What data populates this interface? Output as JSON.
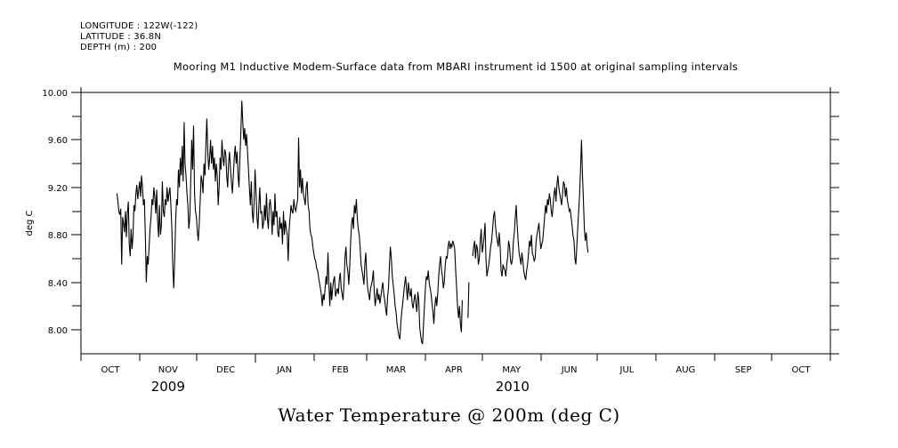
{
  "header": {
    "longitude": "LONGITUDE : 122W(-122)",
    "latitude": "LATITUDE : 36.8N",
    "depth": "DEPTH (m) : 200"
  },
  "chart_data": {
    "type": "line",
    "title": "Water Temperature @ 200m (deg C)",
    "subtitle": "Mooring M1 Inductive Modem-Surface data from MBARI instrument id 1500 at original sampling intervals",
    "xlabel": "",
    "ylabel": "deg C",
    "ylim": [
      7.8,
      10.0
    ],
    "yticks": [
      8.0,
      8.4,
      8.8,
      9.2,
      9.6,
      10.0
    ],
    "ytick_labels": [
      "8.00",
      "8.40",
      "8.80",
      "9.20",
      "9.60",
      "10.00"
    ],
    "yminor_ticks": [
      7.8,
      8.2,
      8.6,
      9.0,
      9.4,
      9.8
    ],
    "x_unit": "days since 2009-10-01",
    "xlim": [
      0,
      396
    ],
    "month_ticks": [
      0,
      31,
      61,
      92,
      123,
      151,
      182,
      212,
      243,
      273,
      304,
      335,
      365,
      396
    ],
    "month_labels": [
      "OCT",
      "NOV",
      "DEC",
      "JAN",
      "FEB",
      "MAR",
      "APR",
      "MAY",
      "JUN",
      "JUL",
      "AUG",
      "SEP",
      "OCT"
    ],
    "year_labels": [
      {
        "label": "2009",
        "day": 46
      },
      {
        "label": "2010",
        "day": 228
      }
    ],
    "grid": false,
    "legend": "none",
    "series": [
      {
        "name": "Water Temperature @ 200m",
        "color": "#000000",
        "start_day": 19,
        "step_days": 0.5,
        "values": [
          9.15,
          9.08,
          9.0,
          8.97,
          9.02,
          8.55,
          8.95,
          8.9,
          8.82,
          9.0,
          8.78,
          8.98,
          9.08,
          8.72,
          8.62,
          8.85,
          8.68,
          8.8,
          9.05,
          9.0,
          9.15,
          9.22,
          9.1,
          9.18,
          9.25,
          9.12,
          9.3,
          9.2,
          9.05,
          9.1,
          8.8,
          8.4,
          8.62,
          8.55,
          8.7,
          8.85,
          8.95,
          9.1,
          9.05,
          9.2,
          9.12,
          8.98,
          9.18,
          8.92,
          8.78,
          9.05,
          8.8,
          8.88,
          9.25,
          9.0,
          8.95,
          9.1,
          9.05,
          9.2,
          9.08,
          9.15,
          9.2,
          9.05,
          8.85,
          8.55,
          8.35,
          8.6,
          8.9,
          9.1,
          9.05,
          9.35,
          9.2,
          9.45,
          9.3,
          9.55,
          9.25,
          9.75,
          9.4,
          9.3,
          9.15,
          9.05,
          8.85,
          8.95,
          9.25,
          9.6,
          9.35,
          9.72,
          9.15,
          9.0,
          8.95,
          8.82,
          8.75,
          8.9,
          9.1,
          9.3,
          9.25,
          9.15,
          9.4,
          9.3,
          9.55,
          9.78,
          9.5,
          9.35,
          9.45,
          9.6,
          9.4,
          9.55,
          9.35,
          9.45,
          9.25,
          9.4,
          9.3,
          9.05,
          9.2,
          9.45,
          9.35,
          9.6,
          9.45,
          9.38,
          9.52,
          9.48,
          9.3,
          9.2,
          9.4,
          9.5,
          9.35,
          9.25,
          9.15,
          9.3,
          9.45,
          9.55,
          9.4,
          9.5,
          9.3,
          9.2,
          9.45,
          9.68,
          9.93,
          9.75,
          9.6,
          9.7,
          9.55,
          9.65,
          9.5,
          9.35,
          9.2,
          9.05,
          9.25,
          9.0,
          8.9,
          9.1,
          9.35,
          9.15,
          8.95,
          8.85,
          9.05,
          9.2,
          8.98,
          9.0,
          8.85,
          8.9,
          9.05,
          8.92,
          9.15,
          8.95,
          8.85,
          9.05,
          9.1,
          9.0,
          8.8,
          9.0,
          8.88,
          9.15,
          8.95,
          9.0,
          8.82,
          8.78,
          8.95,
          8.85,
          8.9,
          8.72,
          9.0,
          8.8,
          8.92,
          8.85,
          8.8,
          8.58,
          8.85,
          8.95,
          9.05,
          9.0,
          8.98,
          9.1,
          9.02,
          9.0,
          9.05,
          9.1,
          9.62,
          9.2,
          9.35,
          9.15,
          9.28,
          9.15,
          9.1,
          9.05,
          9.2,
          9.25,
          9.05,
          9.0,
          8.85,
          8.8,
          8.78,
          8.7,
          8.65,
          8.6,
          8.58,
          8.52,
          8.5,
          8.45,
          8.4,
          8.35,
          8.3,
          8.2,
          8.3,
          8.25,
          8.35,
          8.45,
          8.38,
          8.65,
          8.4,
          8.2,
          8.4,
          8.25,
          8.35,
          8.42,
          8.45,
          8.28,
          8.32,
          8.35,
          8.3,
          8.42,
          8.48,
          8.35,
          8.3,
          8.25,
          8.4,
          8.6,
          8.7,
          8.55,
          8.5,
          8.38,
          8.52,
          8.75,
          8.9,
          8.95,
          8.85,
          9.05,
          8.98,
          9.1,
          8.95,
          8.85,
          8.8,
          8.7,
          8.55,
          8.5,
          8.45,
          8.38,
          8.55,
          8.65,
          8.45,
          8.35,
          8.3,
          8.25,
          8.35,
          8.38,
          8.42,
          8.5,
          8.3,
          8.2,
          8.28,
          8.35,
          8.25,
          8.3,
          8.22,
          8.28,
          8.35,
          8.4,
          8.3,
          8.25,
          8.18,
          8.12,
          8.28,
          8.35,
          8.55,
          8.7,
          8.6,
          8.45,
          8.38,
          8.3,
          8.2,
          8.15,
          8.05,
          8.0,
          7.95,
          7.92,
          8.05,
          8.15,
          8.22,
          8.3,
          8.38,
          8.45,
          8.35,
          8.25,
          8.4,
          8.32,
          8.28,
          8.35,
          8.22,
          8.18,
          8.25,
          8.3,
          8.22,
          8.15,
          8.32,
          8.25,
          8.02,
          7.95,
          7.9,
          7.88,
          8.05,
          8.2,
          8.35,
          8.45,
          8.42,
          8.5,
          8.4,
          8.35,
          8.3,
          8.22,
          8.15,
          8.05,
          8.2,
          8.28,
          8.2,
          8.3,
          8.45,
          8.55,
          8.62,
          8.5,
          8.45,
          8.35,
          8.4,
          8.55,
          8.62,
          8.6,
          8.7,
          8.75,
          8.68,
          8.72,
          8.7,
          8.75,
          8.72,
          8.68,
          8.5,
          8.35,
          8.2,
          8.1,
          8.2,
          8.05,
          7.98,
          8.25,
          null,
          null,
          null,
          null,
          null,
          8.1,
          8.4,
          null,
          null,
          null,
          8.62,
          8.7,
          8.75,
          8.6,
          8.72,
          8.68,
          8.55,
          8.6,
          8.75,
          8.85,
          8.65,
          8.7,
          8.78,
          8.9,
          8.6,
          8.45,
          8.5,
          8.55,
          8.62,
          8.7,
          8.75,
          8.85,
          8.95,
          9.0,
          8.88,
          8.8,
          8.75,
          8.7,
          8.82,
          8.7,
          8.5,
          8.45,
          8.55,
          8.52,
          8.5,
          8.45,
          8.55,
          8.62,
          8.75,
          8.7,
          8.58,
          8.55,
          8.6,
          8.75,
          8.82,
          8.95,
          9.05,
          8.88,
          8.75,
          8.65,
          8.6,
          8.55,
          8.65,
          8.58,
          8.5,
          8.45,
          8.42,
          8.5,
          8.55,
          8.65,
          8.75,
          8.7,
          8.8,
          8.65,
          8.62,
          8.58,
          8.6,
          8.75,
          8.8,
          8.85,
          8.9,
          8.78,
          8.68,
          8.72,
          8.75,
          8.85,
          8.95,
          9.05,
          8.98,
          9.1,
          9.05,
          9.15,
          9.1,
          9.0,
          8.95,
          9.05,
          9.15,
          9.2,
          9.08,
          9.22,
          9.3,
          9.2,
          9.15,
          9.1,
          9.05,
          9.15,
          9.25,
          9.22,
          9.12,
          9.2,
          9.1,
          9.05,
          9.0,
          9.02,
          8.95,
          8.88,
          8.8,
          8.75,
          8.6,
          8.55,
          8.7,
          8.85,
          9.0,
          9.15,
          9.35,
          9.6,
          9.3,
          9.1,
          8.85,
          8.75,
          8.82,
          8.7,
          8.65
        ]
      }
    ]
  }
}
